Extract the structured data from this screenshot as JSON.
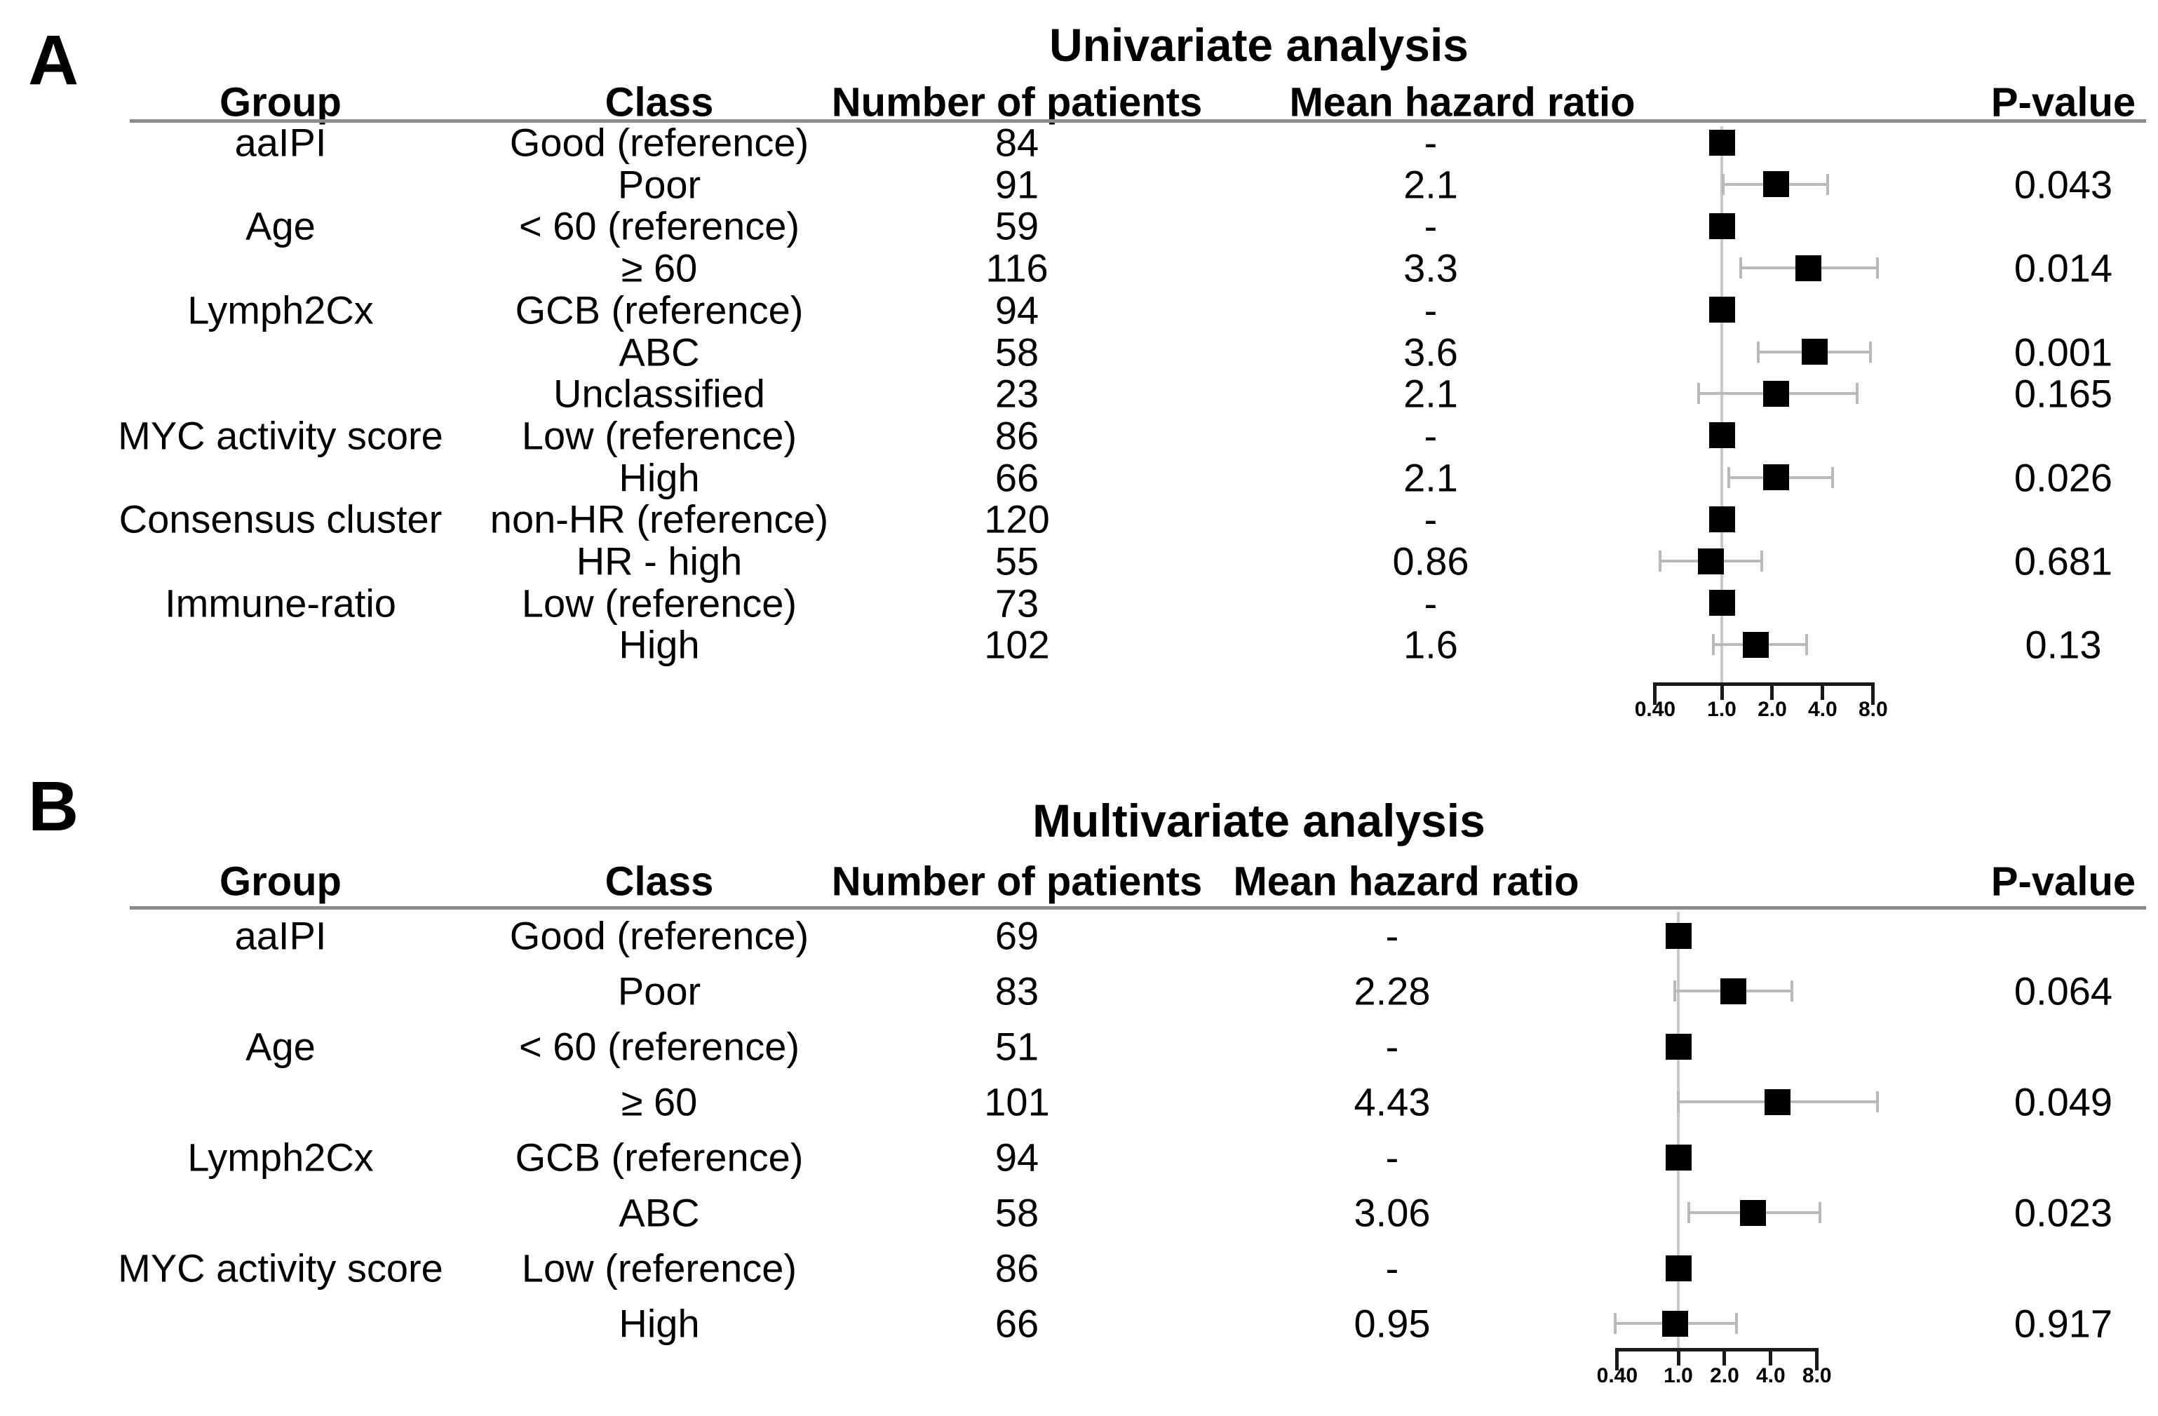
{
  "chart_data": [
    {
      "type": "forest",
      "panel_label": "A",
      "title": "Univariate analysis",
      "columns": [
        "Group",
        "Class",
        "Number of patients",
        "Mean hazard ratio",
        "P-value"
      ],
      "axis": {
        "scale": "log",
        "xlim": [
          0.4,
          8
        ],
        "ticks": [
          0.4,
          1.0,
          2.0,
          4.0,
          8.0
        ],
        "tick_labels": [
          "0.40",
          "1.0",
          "2.0",
          "4.0",
          "8.0"
        ],
        "reference_value": 1.0
      },
      "marker_color": "#000000",
      "ci_color": "#b9b9b9",
      "rows": [
        {
          "group": "aaIPI",
          "class": "Good (reference)",
          "n": "84",
          "hr": "-",
          "hr_value": 1.0,
          "reference": true,
          "p": ""
        },
        {
          "group": "",
          "class": "Poor",
          "n": "91",
          "hr": "2.1",
          "hr_value": 2.1,
          "ci": [
            1.02,
            4.3
          ],
          "reference": false,
          "p": "0.043"
        },
        {
          "group": "Age",
          "class": "< 60 (reference)",
          "n": "59",
          "hr": "-",
          "hr_value": 1.0,
          "reference": true,
          "p": ""
        },
        {
          "group": "",
          "class": "≥ 60",
          "n": "116",
          "hr": "3.3",
          "hr_value": 3.3,
          "ci": [
            1.3,
            8.5
          ],
          "reference": false,
          "p": "0.014"
        },
        {
          "group": "Lymph2Cx",
          "class": "GCB (reference)",
          "n": "94",
          "hr": "-",
          "hr_value": 1.0,
          "reference": true,
          "p": ""
        },
        {
          "group": "",
          "class": "ABC",
          "n": "58",
          "hr": "3.6",
          "hr_value": 3.6,
          "ci": [
            1.65,
            7.7
          ],
          "reference": false,
          "p": "0.001"
        },
        {
          "group": "",
          "class": "Unclassified",
          "n": "23",
          "hr": "2.1",
          "hr_value": 2.1,
          "ci": [
            0.73,
            6.4
          ],
          "reference": false,
          "p": "0.165"
        },
        {
          "group": "MYC activity score",
          "class": "Low (reference)",
          "n": "86",
          "hr": "-",
          "hr_value": 1.0,
          "reference": true,
          "p": ""
        },
        {
          "group": "",
          "class": "High",
          "n": "66",
          "hr": "2.1",
          "hr_value": 2.1,
          "ci": [
            1.1,
            4.6
          ],
          "reference": false,
          "p": "0.026"
        },
        {
          "group": "Consensus cluster",
          "class": "non-HR (reference)",
          "n": "120",
          "hr": "-",
          "hr_value": 1.0,
          "reference": true,
          "p": ""
        },
        {
          "group": "",
          "class": "HR - high",
          "n": "55",
          "hr": "0.86",
          "hr_value": 0.86,
          "ci": [
            0.43,
            1.73
          ],
          "reference": false,
          "p": "0.681"
        },
        {
          "group": "Immune-ratio",
          "class": "Low (reference)",
          "n": "73",
          "hr": "-",
          "hr_value": 1.0,
          "reference": true,
          "p": ""
        },
        {
          "group": "",
          "class": "High",
          "n": "102",
          "hr": "1.6",
          "hr_value": 1.6,
          "ci": [
            0.89,
            3.2
          ],
          "reference": false,
          "p": "0.13"
        }
      ]
    },
    {
      "type": "forest",
      "panel_label": "B",
      "title": "Multivariate analysis",
      "columns": [
        "Group",
        "Class",
        "Number of patients",
        "Mean hazard ratio",
        "P-value"
      ],
      "axis": {
        "scale": "log",
        "xlim": [
          0.4,
          8
        ],
        "ticks": [
          0.4,
          1.0,
          2.0,
          4.0,
          8.0
        ],
        "tick_labels": [
          "0.40",
          "1.0",
          "2.0",
          "4.0",
          "8.0"
        ],
        "reference_value": 1.0
      },
      "marker_color": "#000000",
      "ci_color": "#b9b9b9",
      "rows": [
        {
          "group": "aaIPI",
          "class": "Good (reference)",
          "n": "69",
          "hr": "-",
          "hr_value": 1.0,
          "reference": true,
          "p": ""
        },
        {
          "group": "",
          "class": "Poor",
          "n": "83",
          "hr": "2.28",
          "hr_value": 2.28,
          "ci": [
            0.95,
            5.5
          ],
          "reference": false,
          "p": "0.064"
        },
        {
          "group": "Age",
          "class": "< 60 (reference)",
          "n": "51",
          "hr": "-",
          "hr_value": 1.0,
          "reference": true,
          "p": ""
        },
        {
          "group": "",
          "class": "≥ 60",
          "n": "101",
          "hr": "4.43",
          "hr_value": 4.43,
          "ci": [
            1.0,
            19.8
          ],
          "reference": false,
          "p": "0.049"
        },
        {
          "group": "Lymph2Cx",
          "class": "GCB (reference)",
          "n": "94",
          "hr": "-",
          "hr_value": 1.0,
          "reference": true,
          "p": ""
        },
        {
          "group": "",
          "class": "ABC",
          "n": "58",
          "hr": "3.06",
          "hr_value": 3.06,
          "ci": [
            1.17,
            8.4
          ],
          "reference": false,
          "p": "0.023"
        },
        {
          "group": "MYC activity score",
          "class": "Low (reference)",
          "n": "86",
          "hr": "-",
          "hr_value": 1.0,
          "reference": true,
          "p": ""
        },
        {
          "group": "",
          "class": "High",
          "n": "66",
          "hr": "0.95",
          "hr_value": 0.95,
          "ci": [
            0.39,
            2.4
          ],
          "reference": false,
          "p": "0.917"
        }
      ]
    }
  ]
}
